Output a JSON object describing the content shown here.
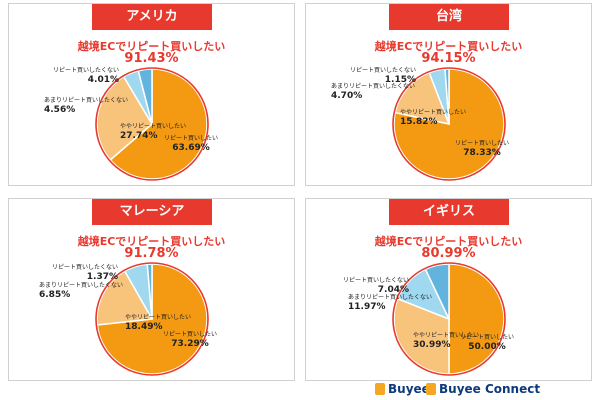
{
  "colors": {
    "accent": "#e8392e",
    "slice_repeat": "#f39a12",
    "slice_somewhat": "#f8c37a",
    "slice_rarely": "#9fd8ef",
    "slice_not": "#62b4de"
  },
  "brand": {
    "logo1": "Buyee",
    "logo2": "Buyee Connect"
  },
  "chart_data": [
    {
      "type": "pie",
      "title": "アメリカ",
      "headline_label": "越境ECでリピート買いしたい",
      "headline_value": "91.43%",
      "categories": [
        "リピート買いしたい",
        "ややリピート買いしたい",
        "あまりリピート買いしたくない",
        "リピート買いしたくない"
      ],
      "values": [
        63.69,
        27.74,
        4.56,
        4.01
      ],
      "labels": [
        {
          "name": "リピート買いしたい",
          "value": "63.69%"
        },
        {
          "name": "ややリピート買いしたい",
          "value": "27.74%"
        },
        {
          "name": "あまりリピート買いしたくない",
          "value": "4.56%"
        },
        {
          "name": "リピート買いしたくない",
          "value": "4.01%"
        }
      ]
    },
    {
      "type": "pie",
      "title": "台湾",
      "headline_label": "越境ECでリピート買いしたい",
      "headline_value": "94.15%",
      "categories": [
        "リピート買いしたい",
        "ややリピート買いしたい",
        "あまりリピート買いしたくない",
        "リピート買いしたくない"
      ],
      "values": [
        78.33,
        15.82,
        4.7,
        1.15
      ],
      "labels": [
        {
          "name": "リピート買いしたい",
          "value": "78.33%"
        },
        {
          "name": "ややリピート買いしたい",
          "value": "15.82%"
        },
        {
          "name": "あまりリピート買いしたくない",
          "value": "4.70%"
        },
        {
          "name": "リピート買いしたくない",
          "value": "1.15%"
        }
      ]
    },
    {
      "type": "pie",
      "title": "マレーシア",
      "headline_label": "越境ECでリピート買いしたい",
      "headline_value": "91.78%",
      "categories": [
        "リピート買いしたい",
        "ややリピート買いしたい",
        "あまりリピート買いしたくない",
        "リピート買いしたくない"
      ],
      "values": [
        73.29,
        18.49,
        6.85,
        1.37
      ],
      "labels": [
        {
          "name": "リピート買いしたい",
          "value": "73.29%"
        },
        {
          "name": "ややリピート買いしたい",
          "value": "18.49%"
        },
        {
          "name": "あまりリピート買いしたくない",
          "value": "6.85%"
        },
        {
          "name": "リピート買いしたくない",
          "value": "1.37%"
        }
      ]
    },
    {
      "type": "pie",
      "title": "イギリス",
      "headline_label": "越境ECでリピート買いしたい",
      "headline_value": "80.99%",
      "categories": [
        "リピート買いしたい",
        "ややリピート買いしたい",
        "あまりリピート買いしたくない",
        "リピート買いしたくない"
      ],
      "values": [
        50.0,
        30.99,
        11.97,
        7.04
      ],
      "labels": [
        {
          "name": "リピート買いしたい",
          "value": "50.00%"
        },
        {
          "name": "ややリピート買いしたい",
          "value": "30.99%"
        },
        {
          "name": "あまりリピート買いしたくない",
          "value": "11.97%"
        },
        {
          "name": "リピート買いしたくない",
          "value": "7.04%"
        }
      ]
    }
  ]
}
